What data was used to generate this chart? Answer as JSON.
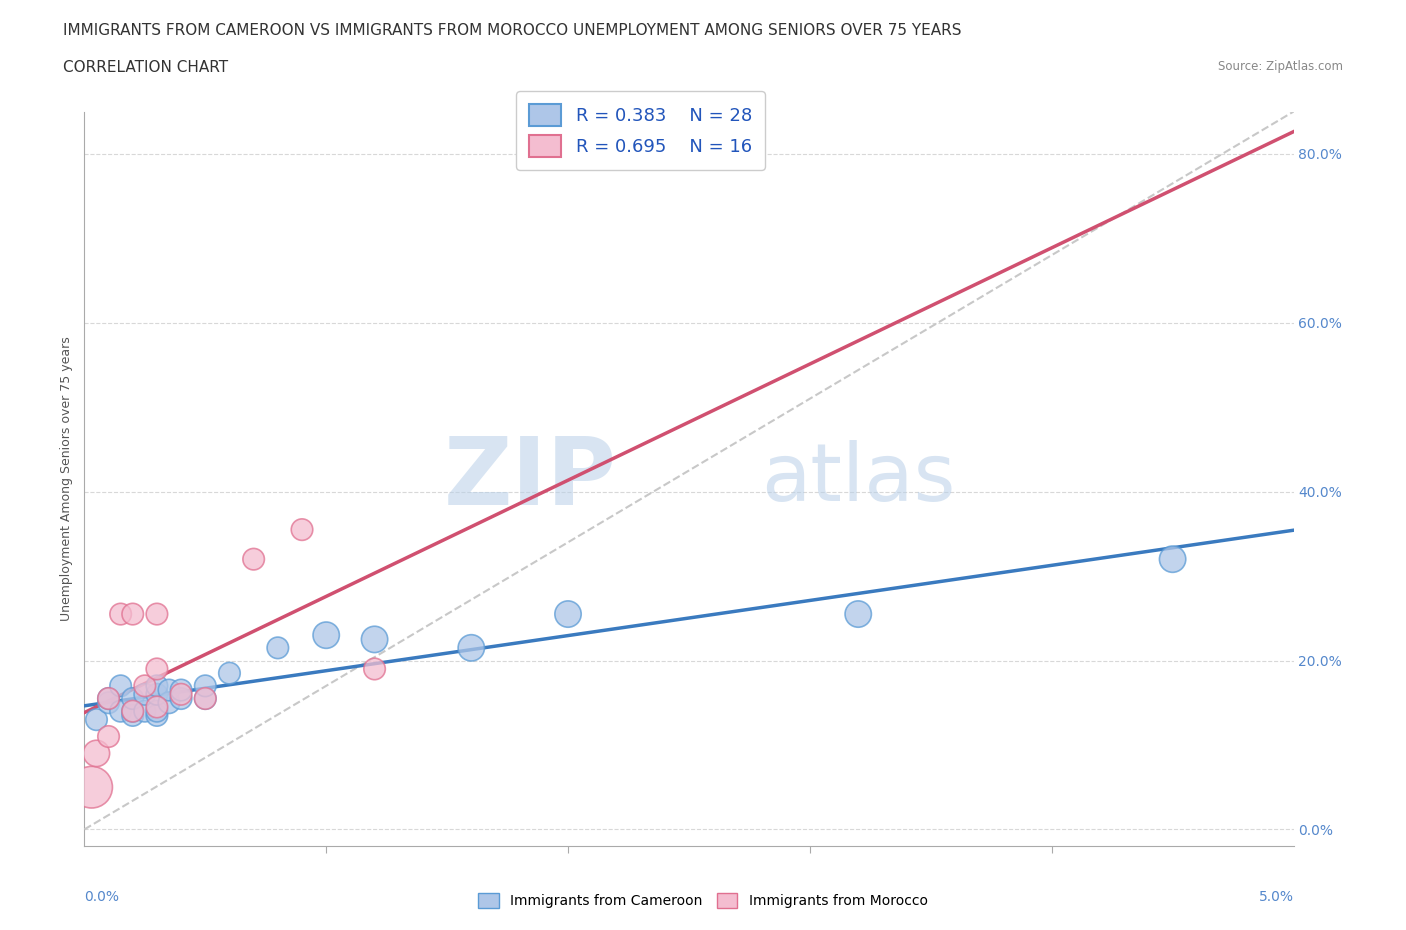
{
  "title_line1": "IMMIGRANTS FROM CAMEROON VS IMMIGRANTS FROM MOROCCO UNEMPLOYMENT AMONG SENIORS OVER 75 YEARS",
  "title_line2": "CORRELATION CHART",
  "source": "Source: ZipAtlas.com",
  "ylabel": "Unemployment Among Seniors over 75 years",
  "watermark_zip": "ZIP",
  "watermark_atlas": "atlas",
  "legend_R1": "R = 0.383",
  "legend_N1": "N = 28",
  "legend_R2": "R = 0.695",
  "legend_N2": "N = 16",
  "xlim": [
    0.0,
    0.05
  ],
  "ylim": [
    -0.02,
    0.85
  ],
  "yticks": [
    0.0,
    0.2,
    0.4,
    0.6,
    0.8
  ],
  "ytick_labels": [
    "0.0%",
    "20.0%",
    "40.0%",
    "60.0%",
    "80.0%"
  ],
  "xtick_start": "0.0%",
  "xtick_end": "5.0%",
  "color_cameroon_fill": "#aec6e8",
  "color_cameroon_edge": "#5b9bd5",
  "color_morocco_fill": "#f4bdd0",
  "color_morocco_edge": "#e07090",
  "color_line_cameroon": "#3a7abf",
  "color_line_morocco": "#d05070",
  "color_diagonal": "#c8c8c8",
  "color_grid": "#d8d8d8",
  "cameroon_x": [
    0.0005,
    0.001,
    0.001,
    0.0015,
    0.0015,
    0.002,
    0.002,
    0.002,
    0.0025,
    0.0025,
    0.003,
    0.003,
    0.003,
    0.003,
    0.0035,
    0.0035,
    0.004,
    0.004,
    0.005,
    0.005,
    0.006,
    0.008,
    0.01,
    0.012,
    0.016,
    0.02,
    0.032,
    0.045
  ],
  "cameroon_y": [
    0.13,
    0.15,
    0.155,
    0.14,
    0.17,
    0.135,
    0.14,
    0.155,
    0.14,
    0.16,
    0.135,
    0.14,
    0.16,
    0.17,
    0.15,
    0.165,
    0.155,
    0.165,
    0.155,
    0.17,
    0.185,
    0.215,
    0.23,
    0.225,
    0.215,
    0.255,
    0.255,
    0.32
  ],
  "cameroon_s": [
    80,
    80,
    80,
    80,
    80,
    80,
    80,
    80,
    80,
    80,
    80,
    80,
    80,
    80,
    80,
    80,
    80,
    80,
    80,
    80,
    80,
    80,
    120,
    120,
    120,
    120,
    120,
    120
  ],
  "morocco_x": [
    0.0003,
    0.0005,
    0.001,
    0.001,
    0.0015,
    0.002,
    0.002,
    0.0025,
    0.003,
    0.003,
    0.003,
    0.004,
    0.005,
    0.007,
    0.009,
    0.012
  ],
  "morocco_y": [
    0.05,
    0.09,
    0.11,
    0.155,
    0.255,
    0.14,
    0.255,
    0.17,
    0.145,
    0.19,
    0.255,
    0.16,
    0.155,
    0.32,
    0.355,
    0.19
  ],
  "morocco_s": [
    300,
    120,
    80,
    80,
    80,
    80,
    80,
    80,
    80,
    80,
    80,
    80,
    80,
    80,
    80,
    80
  ],
  "title_fontsize": 11,
  "axis_label_fontsize": 9,
  "tick_fontsize": 10,
  "legend_fontsize": 13
}
